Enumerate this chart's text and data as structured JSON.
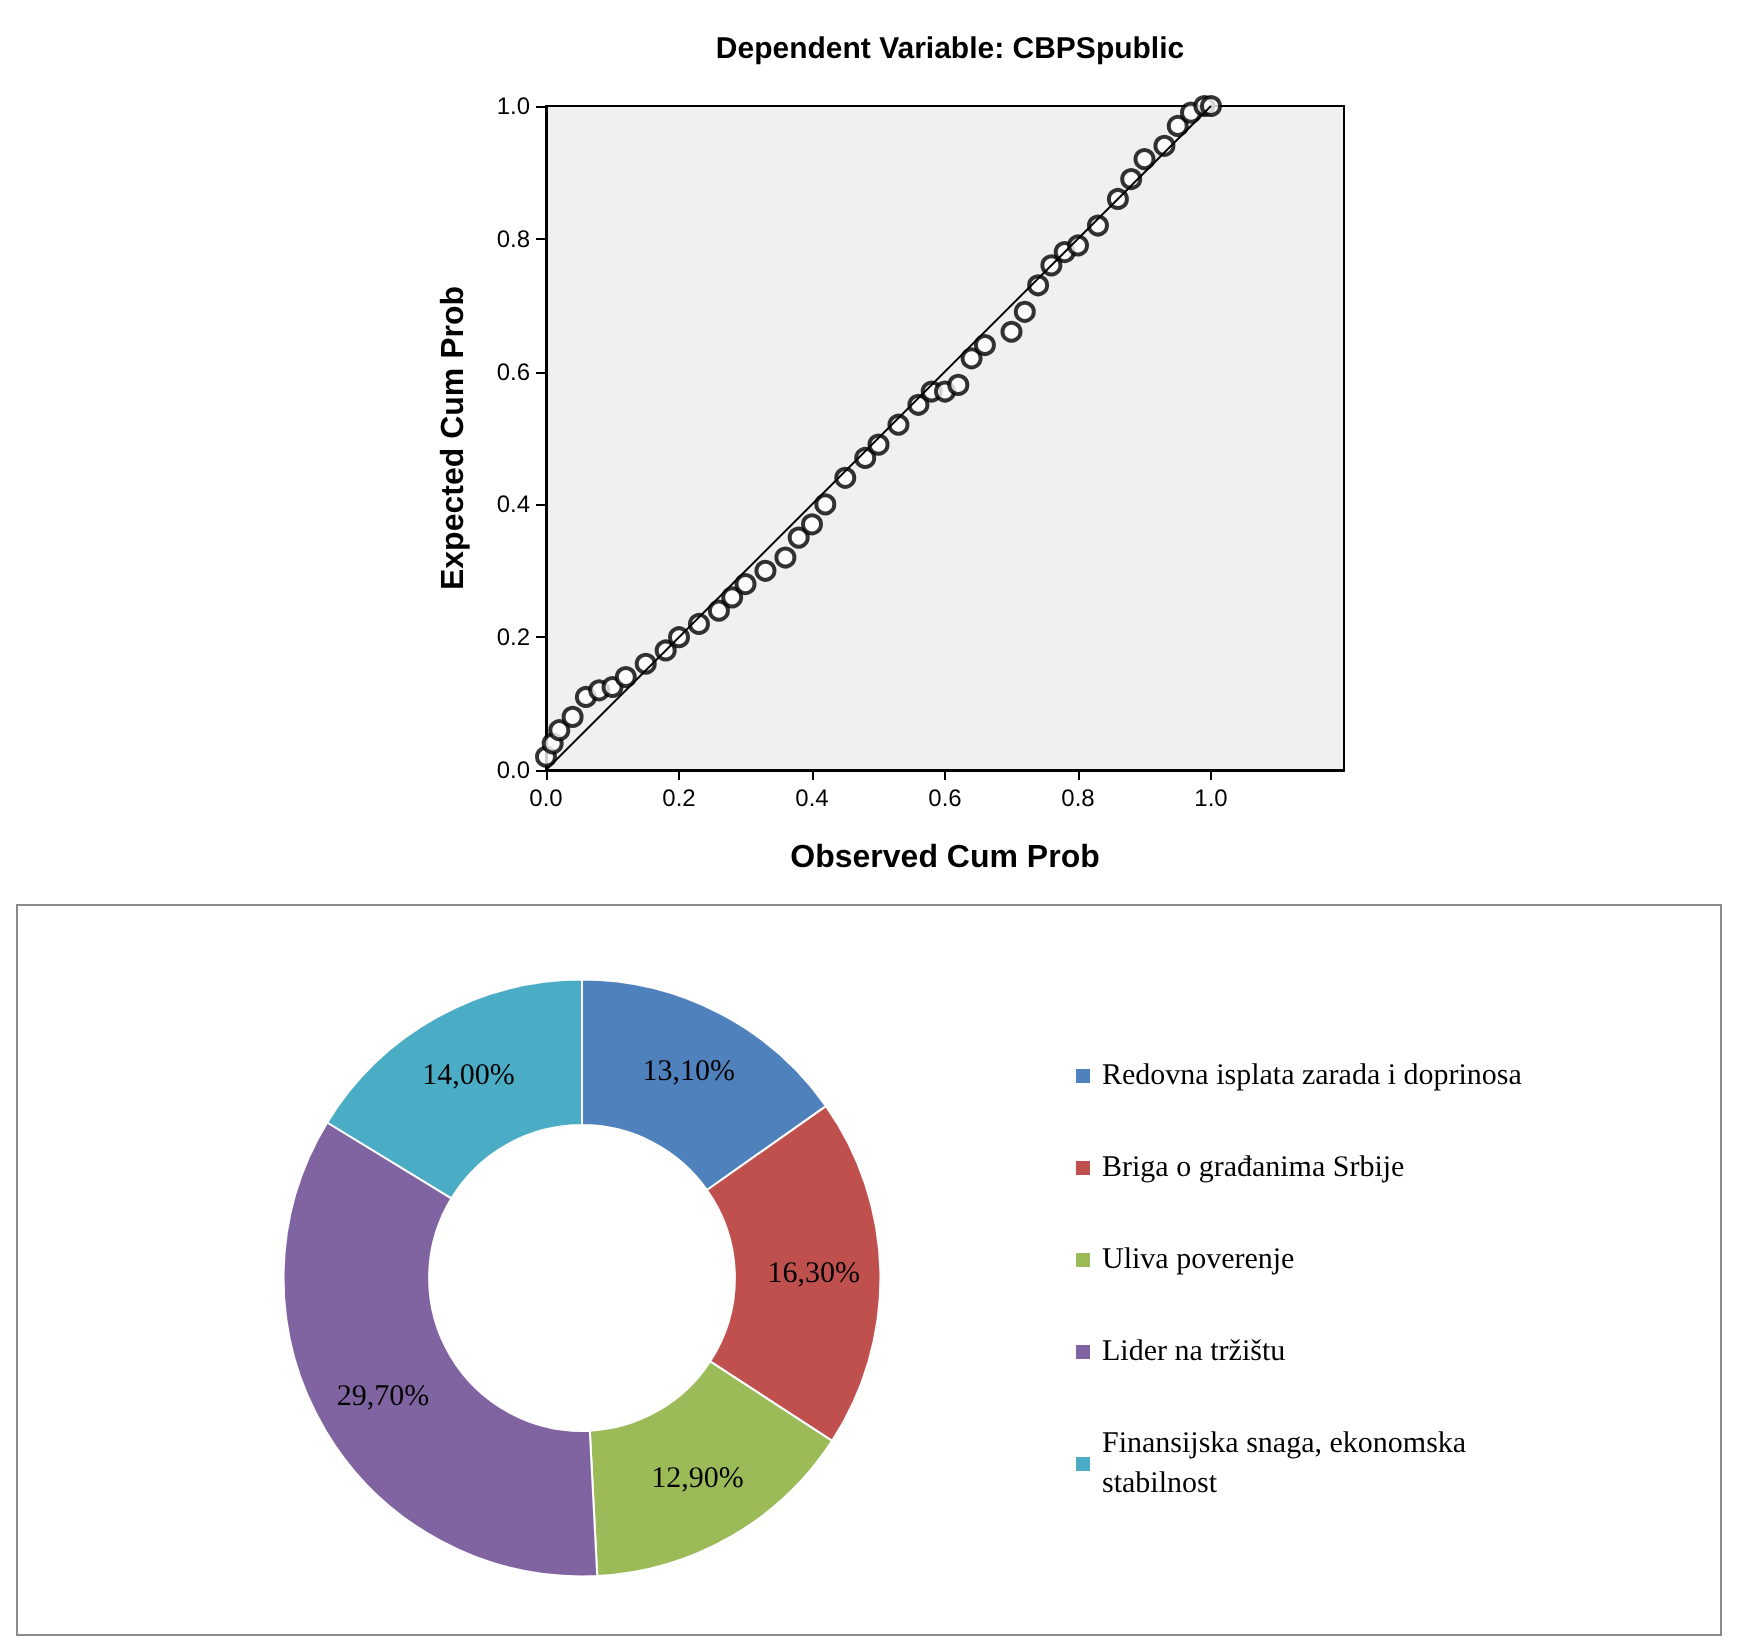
{
  "chart_data": [
    {
      "type": "scatter",
      "title": "Dependent Variable: CBPSpublic",
      "xlabel": "Observed Cum Prob",
      "ylabel": "Expected Cum Prob",
      "xlim": [
        0,
        1.2
      ],
      "ylim": [
        0,
        1.0
      ],
      "xticks": [
        {
          "value": 0,
          "label": "0.0"
        },
        0.2,
        0.4,
        0.6,
        0.8,
        {
          "value": 1,
          "label": "1.0"
        }
      ],
      "yticks": [
        {
          "value": 0,
          "label": "0.0"
        },
        0.2,
        0.4,
        0.6,
        0.8,
        {
          "value": 1,
          "label": "1.0"
        }
      ],
      "grid": false,
      "legend": false,
      "series": [
        {
          "type": "scatter",
          "marker": "circle",
          "color": "#000000",
          "x": [
            0,
            0.01,
            0.02,
            0.04,
            0.06,
            0.08,
            0.1,
            0.12,
            0.15,
            0.18,
            0.2,
            0.23,
            0.26,
            0.28,
            0.3,
            0.33,
            0.36,
            0.38,
            0.4,
            0.42,
            0.45,
            0.48,
            0.5,
            0.53,
            0.56,
            0.58,
            0.6,
            0.62,
            0.64,
            0.66,
            0.7,
            0.72,
            0.74,
            0.76,
            0.78,
            0.8,
            0.83,
            0.86,
            0.88,
            0.9,
            0.93,
            0.95,
            0.97,
            0.99,
            1.0
          ],
          "values": [
            0.02,
            0.04,
            0.06,
            0.08,
            0.11,
            0.12,
            0.125,
            0.14,
            0.16,
            0.18,
            0.2,
            0.22,
            0.24,
            0.26,
            0.28,
            0.3,
            0.32,
            0.35,
            0.37,
            0.4,
            0.44,
            0.47,
            0.49,
            0.52,
            0.55,
            0.57,
            0.57,
            0.58,
            0.62,
            0.64,
            0.66,
            0.69,
            0.73,
            0.76,
            0.78,
            0.79,
            0.82,
            0.86,
            0.89,
            0.92,
            0.94,
            0.97,
            0.99,
            1.0,
            1.0
          ]
        },
        {
          "type": "line",
          "marker": "none",
          "color": "#000000",
          "x": [
            0,
            1
          ],
          "values": [
            0,
            1
          ]
        }
      ]
    },
    {
      "type": "donut",
      "categories": [
        "Redovna isplata zarada i doprinosa",
        "Briga o građanima Srbije",
        "Uliva poverenje",
        "Lider na tržištu",
        "Finansijska snaga, ekonomska stabilnost"
      ],
      "values": [
        13.1,
        16.3,
        12.9,
        29.7,
        14.0
      ],
      "value_labels": [
        "13,10%",
        "16,30%",
        "12,90%",
        "29,70%",
        "14,00%"
      ],
      "colors": [
        "#4f81bd",
        "#c0504d",
        "#9bbb59",
        "#8064a2",
        "#4bacc6"
      ],
      "legend": "right"
    }
  ]
}
